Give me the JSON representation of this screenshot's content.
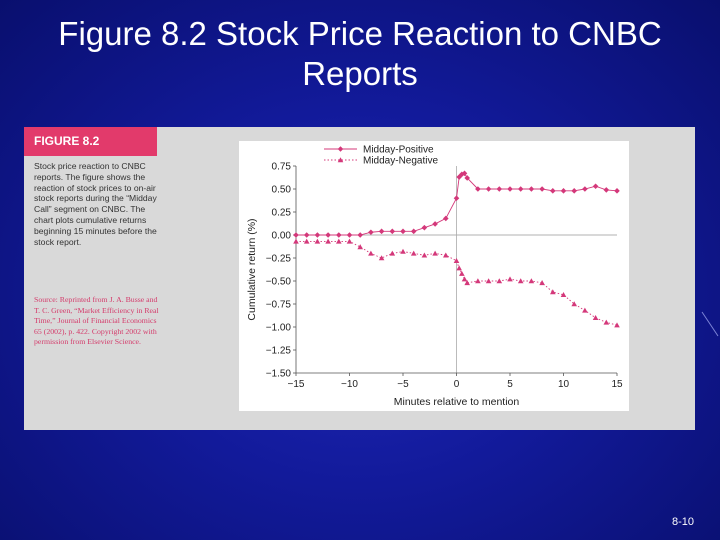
{
  "slide": {
    "title_line1": "Figure 8.2 Stock Price Reaction to CNBC",
    "title_line2": "Reports",
    "page_number": "8-10"
  },
  "figure": {
    "label": "FIGURE 8.2",
    "caption": "Stock price reaction to CNBC reports. The figure shows the reaction of stock prices to on-air stock reports during the “Midday Call” segment on CNBC. The chart plots cumulative returns beginning 15 minutes before the stock report.",
    "source": "Source: Reprinted from J. A. Busse and T. C. Green, “Market Efficiency in Real Time,” Journal of Financial Economics 65 (2002), p. 422. Copyright 2002 with permission from Elsevier Science.",
    "colors": {
      "label_bg": "#e23a6b",
      "series": "#d4387a",
      "panel_bg": "#d9d9d9"
    }
  },
  "chart_data": {
    "type": "line",
    "xlabel": "Minutes relative to mention",
    "ylabel": "Cumulative return (%)",
    "xlim": [
      -15,
      15
    ],
    "ylim": [
      -1.5,
      0.75
    ],
    "x_ticks": [
      -15,
      -10,
      -5,
      0,
      5,
      10,
      15
    ],
    "y_ticks": [
      0.75,
      0.5,
      0.25,
      0.0,
      -0.25,
      -0.5,
      -0.75,
      -1.0,
      -1.25,
      -1.5
    ],
    "x_tick_labels": [
      "−15",
      "−10",
      "−5",
      "0",
      "5",
      "10",
      "15"
    ],
    "y_tick_labels": [
      "0.75",
      "0.50",
      "0.25",
      "0.00",
      "−0.25",
      "−0.50",
      "−0.75",
      "−1.00",
      "−1.25",
      "−1.50"
    ],
    "legend_position": "top-left",
    "grid": false,
    "series": [
      {
        "name": "Midday-Positive",
        "marker": "diamond",
        "points": [
          [
            -15,
            0.0
          ],
          [
            -14,
            0.0
          ],
          [
            -13,
            0.0
          ],
          [
            -12,
            0.0
          ],
          [
            -11,
            0.0
          ],
          [
            -10,
            0.0
          ],
          [
            -9,
            0.0
          ],
          [
            -8,
            0.03
          ],
          [
            -7,
            0.04
          ],
          [
            -6,
            0.04
          ],
          [
            -5,
            0.04
          ],
          [
            -4,
            0.04
          ],
          [
            -3,
            0.08
          ],
          [
            -2,
            0.12
          ],
          [
            -1,
            0.18
          ],
          [
            0,
            0.4
          ],
          [
            0.25,
            0.63
          ],
          [
            0.5,
            0.66
          ],
          [
            0.75,
            0.67
          ],
          [
            1,
            0.62
          ],
          [
            2,
            0.5
          ],
          [
            3,
            0.5
          ],
          [
            4,
            0.5
          ],
          [
            5,
            0.5
          ],
          [
            6,
            0.5
          ],
          [
            7,
            0.5
          ],
          [
            8,
            0.5
          ],
          [
            9,
            0.48
          ],
          [
            10,
            0.48
          ],
          [
            11,
            0.48
          ],
          [
            12,
            0.5
          ],
          [
            13,
            0.53
          ],
          [
            14,
            0.49
          ],
          [
            15,
            0.48
          ]
        ]
      },
      {
        "name": "Midday-Negative",
        "marker": "triangle",
        "points": [
          [
            -15,
            -0.07
          ],
          [
            -14,
            -0.07
          ],
          [
            -13,
            -0.07
          ],
          [
            -12,
            -0.07
          ],
          [
            -11,
            -0.07
          ],
          [
            -10,
            -0.07
          ],
          [
            -9,
            -0.13
          ],
          [
            -8,
            -0.2
          ],
          [
            -7,
            -0.25
          ],
          [
            -6,
            -0.2
          ],
          [
            -5,
            -0.18
          ],
          [
            -4,
            -0.2
          ],
          [
            -3,
            -0.22
          ],
          [
            -2,
            -0.2
          ],
          [
            -1,
            -0.22
          ],
          [
            0,
            -0.28
          ],
          [
            0.25,
            -0.36
          ],
          [
            0.5,
            -0.42
          ],
          [
            0.75,
            -0.48
          ],
          [
            1,
            -0.52
          ],
          [
            2,
            -0.5
          ],
          [
            3,
            -0.5
          ],
          [
            4,
            -0.5
          ],
          [
            5,
            -0.48
          ],
          [
            6,
            -0.5
          ],
          [
            7,
            -0.5
          ],
          [
            8,
            -0.52
          ],
          [
            9,
            -0.62
          ],
          [
            10,
            -0.65
          ],
          [
            11,
            -0.75
          ],
          [
            12,
            -0.82
          ],
          [
            13,
            -0.9
          ],
          [
            14,
            -0.95
          ],
          [
            15,
            -0.98
          ]
        ]
      }
    ]
  }
}
